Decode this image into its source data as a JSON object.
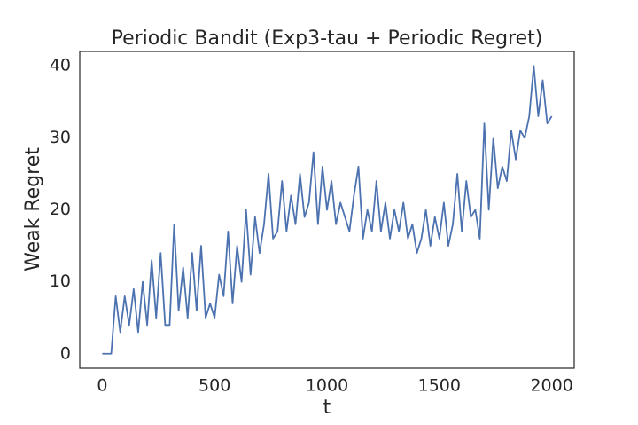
{
  "chart_data": {
    "type": "line",
    "title": "Periodic Bandit (Exp3-tau + Periodic Regret)",
    "xlabel": "t",
    "ylabel": "Weak Regret",
    "x": [
      0,
      20,
      40,
      60,
      80,
      100,
      120,
      140,
      160,
      180,
      200,
      220,
      240,
      260,
      280,
      300,
      320,
      340,
      360,
      380,
      400,
      420,
      440,
      460,
      480,
      500,
      520,
      540,
      560,
      580,
      600,
      620,
      640,
      660,
      680,
      700,
      720,
      740,
      760,
      780,
      800,
      820,
      840,
      860,
      880,
      900,
      920,
      940,
      960,
      980,
      1000,
      1020,
      1040,
      1060,
      1080,
      1100,
      1120,
      1140,
      1160,
      1180,
      1200,
      1220,
      1240,
      1260,
      1280,
      1300,
      1320,
      1340,
      1360,
      1380,
      1400,
      1420,
      1440,
      1460,
      1480,
      1500,
      1520,
      1540,
      1560,
      1580,
      1600,
      1620,
      1640,
      1660,
      1680,
      1700,
      1720,
      1740,
      1760,
      1780,
      1800,
      1820,
      1840,
      1860,
      1880,
      1900,
      1920,
      1940,
      1960,
      1980,
      2000
    ],
    "series": [
      {
        "name": "Weak Regret",
        "color": "#4c72b0",
        "values": [
          0,
          0,
          0,
          8,
          3,
          8,
          4,
          9,
          3,
          10,
          4,
          13,
          5,
          14,
          4,
          4,
          18,
          6,
          12,
          5,
          14,
          6,
          15,
          5,
          7,
          5,
          11,
          8,
          17,
          7,
          15,
          10,
          20,
          11,
          19,
          14,
          18,
          25,
          16,
          17,
          24,
          17,
          22,
          18,
          25,
          19,
          21,
          28,
          18,
          26,
          20,
          24,
          18,
          21,
          19,
          17,
          22,
          26,
          16,
          20,
          17,
          24,
          17,
          21,
          16,
          20,
          17,
          21,
          16,
          18,
          14,
          16,
          20,
          15,
          19,
          16,
          21,
          15,
          18,
          25,
          17,
          24,
          19,
          20,
          16,
          32,
          20,
          30,
          23,
          26,
          24,
          31,
          27,
          31,
          30,
          33,
          40,
          33,
          38,
          32,
          33
        ]
      }
    ],
    "xlim": [
      -100,
      2100
    ],
    "ylim": [
      -2,
      42
    ],
    "xticks": [
      0,
      500,
      1000,
      1500,
      2000
    ],
    "yticks": [
      0,
      10,
      20,
      30,
      40
    ],
    "grid": false
  }
}
